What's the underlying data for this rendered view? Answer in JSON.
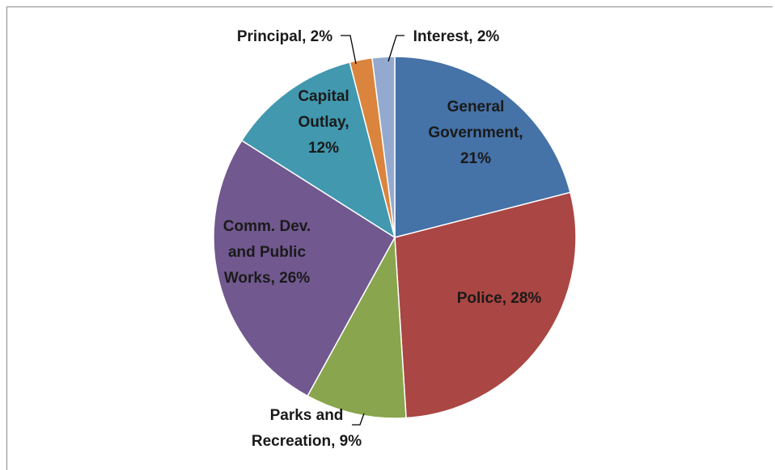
{
  "chart_data": {
    "type": "pie",
    "title": "",
    "slices": [
      {
        "name": "General Government",
        "percent": 21,
        "color": "#4572A7",
        "label_lines": [
          "General",
          "Government,",
          "21%"
        ]
      },
      {
        "name": "Police",
        "percent": 28,
        "color": "#AA4643",
        "label_lines": [
          "Police, 28%"
        ]
      },
      {
        "name": "Parks and Recreation",
        "percent": 9,
        "color": "#89A54E",
        "label_lines": [
          "Parks and",
          "Recreation, 9%"
        ]
      },
      {
        "name": "Comm. Dev. and Public Works",
        "percent": 26,
        "color": "#71588F",
        "label_lines": [
          "Comm. Dev.",
          "and Public",
          "Works, 26%"
        ]
      },
      {
        "name": "Capital Outlay",
        "percent": 12,
        "color": "#4198AF",
        "label_lines": [
          "Capital",
          "Outlay,",
          "12%"
        ]
      },
      {
        "name": "Principal",
        "percent": 2,
        "color": "#DB843D",
        "label_lines": [
          "Principal, 2%"
        ]
      },
      {
        "name": "Interest",
        "percent": 2,
        "color": "#93A9CF",
        "label_lines": [
          "Interest, 2%"
        ]
      }
    ]
  }
}
